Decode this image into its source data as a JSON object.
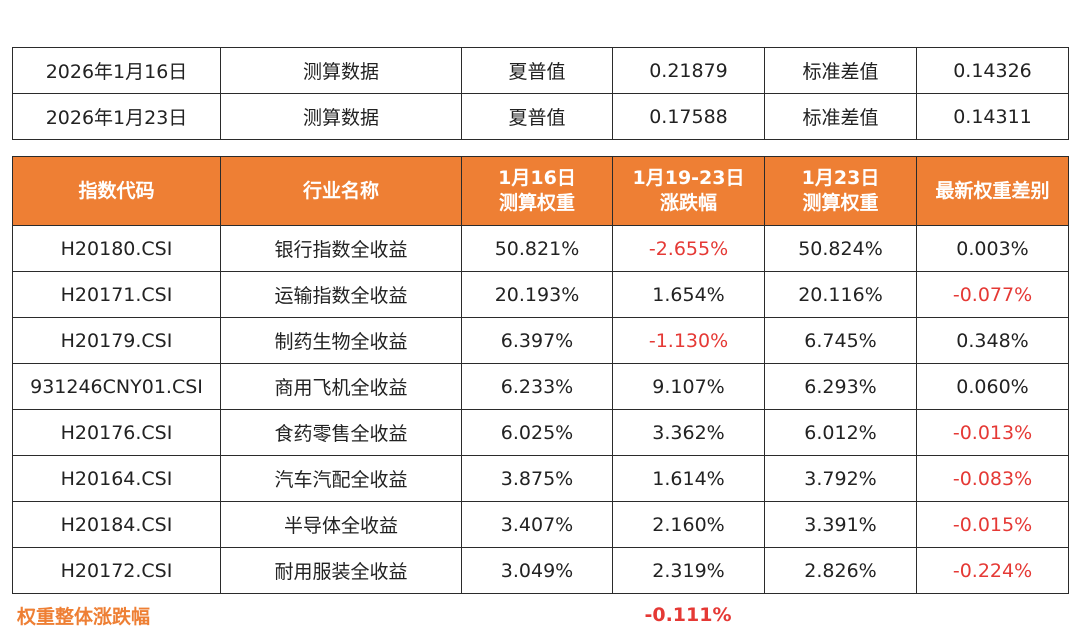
{
  "summary": [
    {
      "date": "2026年1月16日",
      "type": "测算数据",
      "sharpe_label": "夏普值",
      "sharpe_value": "0.21879",
      "std_label": "标准差值",
      "std_value": "0.14326"
    },
    {
      "date": "2026年1月23日",
      "type": "测算数据",
      "sharpe_label": "夏普值",
      "sharpe_value": "0.17588",
      "std_label": "标准差值",
      "std_value": "0.14311"
    }
  ],
  "table": {
    "headers": [
      [
        "指数代码"
      ],
      [
        "行业名称"
      ],
      [
        "1月16日",
        "测算权重"
      ],
      [
        "1月19-23日",
        "涨跌幅"
      ],
      [
        "1月23日",
        "测算权重"
      ],
      [
        "最新权重差别"
      ]
    ],
    "rows": [
      {
        "code": "H20180.CSI",
        "name": "银行指数全收益",
        "w16": "50.821%",
        "chg": "-2.655%",
        "chg_neg": true,
        "w23": "50.824%",
        "diff": "0.003%",
        "diff_neg": false
      },
      {
        "code": "H20171.CSI",
        "name": "运输指数全收益",
        "w16": "20.193%",
        "chg": "1.654%",
        "chg_neg": false,
        "w23": "20.116%",
        "diff": "-0.077%",
        "diff_neg": true
      },
      {
        "code": "H20179.CSI",
        "name": "制药生物全收益",
        "w16": "6.397%",
        "chg": "-1.130%",
        "chg_neg": true,
        "w23": "6.745%",
        "diff": "0.348%",
        "diff_neg": false
      },
      {
        "code": "931246CNY01.CSI",
        "name": "商用飞机全收益",
        "w16": "6.233%",
        "chg": "9.107%",
        "chg_neg": false,
        "w23": "6.293%",
        "diff": "0.060%",
        "diff_neg": false
      },
      {
        "code": "H20176.CSI",
        "name": "食药零售全收益",
        "w16": "6.025%",
        "chg": "3.362%",
        "chg_neg": false,
        "w23": "6.012%",
        "diff": "-0.013%",
        "diff_neg": true
      },
      {
        "code": "H20164.CSI",
        "name": "汽车汽配全收益",
        "w16": "3.875%",
        "chg": "1.614%",
        "chg_neg": false,
        "w23": "3.792%",
        "diff": "-0.083%",
        "diff_neg": true
      },
      {
        "code": "H20184.CSI",
        "name": "半导体全收益",
        "w16": "3.407%",
        "chg": "2.160%",
        "chg_neg": false,
        "w23": "3.391%",
        "diff": "-0.015%",
        "diff_neg": true
      },
      {
        "code": "H20172.CSI",
        "name": "耐用服装全收益",
        "w16": "3.049%",
        "chg": "2.319%",
        "chg_neg": false,
        "w23": "2.826%",
        "diff": "-0.224%",
        "diff_neg": true
      }
    ]
  },
  "footer": {
    "label": "权重整体涨跌幅",
    "value": "-0.111%"
  },
  "colors": {
    "header_bg": "#ee7f34",
    "negative": "#e53935",
    "footer_label": "#ee7f34"
  }
}
